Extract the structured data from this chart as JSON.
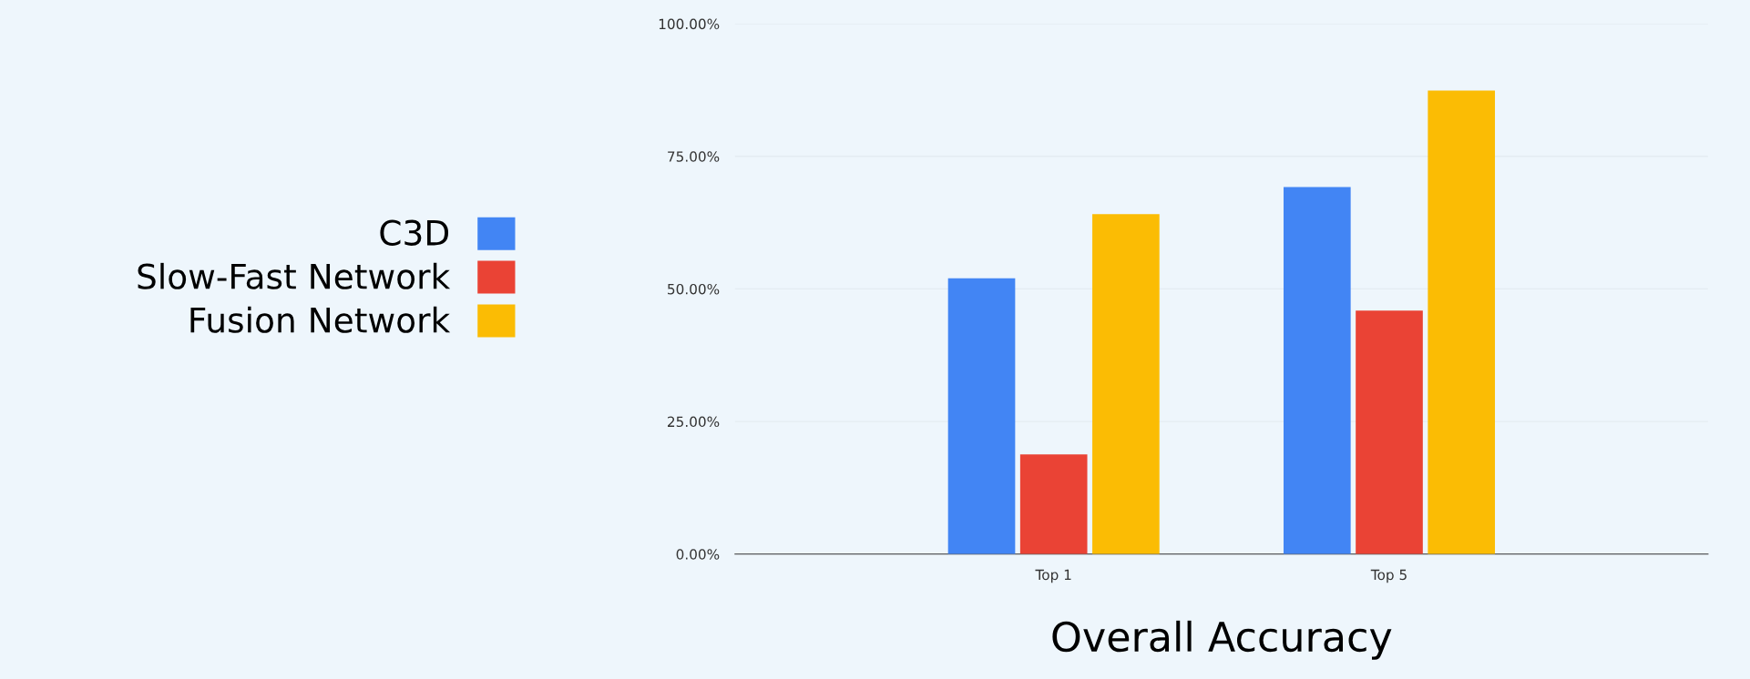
{
  "chart_data": {
    "type": "bar",
    "xlabel": "Overall Accuracy",
    "categories": [
      "Top 1",
      "Top 5"
    ],
    "series": [
      {
        "name": "C3D",
        "color": "#4285f4",
        "values": [
          52.0,
          69.2
        ]
      },
      {
        "name": "Slow-Fast Network",
        "color": "#ea4335",
        "values": [
          18.8,
          45.9
        ]
      },
      {
        "name": "Fusion Network",
        "color": "#fbbc04",
        "values": [
          64.1,
          87.4
        ]
      }
    ],
    "ylim": [
      0,
      100
    ],
    "yticks": [
      {
        "value": 0,
        "label": "0.00%"
      },
      {
        "value": 25,
        "label": "25.00%"
      },
      {
        "value": 50,
        "label": "50.00%"
      },
      {
        "value": 75,
        "label": "75.00%"
      },
      {
        "value": 100,
        "label": "100.00%"
      }
    ],
    "grid": "y",
    "legend": "left"
  }
}
